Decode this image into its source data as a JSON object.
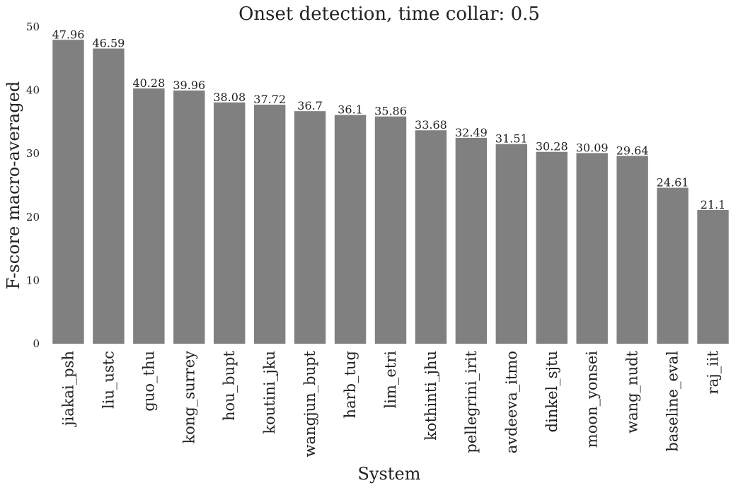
{
  "chart_data": {
    "type": "bar",
    "title": "Onset detection, time collar: 0.5",
    "xlabel": "System",
    "ylabel": "F-score macro-averaged",
    "ylim": [
      0,
      50
    ],
    "yticks": [
      "0",
      "10",
      "20",
      "30",
      "40",
      "50"
    ],
    "grid": false,
    "bar_color": "#808080",
    "categories": [
      "jiakai_psh",
      "liu_ustc",
      "guo_thu",
      "kong_surrey",
      "hou_bupt",
      "koutini_jku",
      "wangjun_bupt",
      "harb_tug",
      "lim_etri",
      "kothinti_jhu",
      "pellegrini_irit",
      "avdeeva_itmo",
      "dinkel_sjtu",
      "moon_yonsei",
      "wang_nudt",
      "baseline_eval",
      "raj_iit"
    ],
    "values": [
      47.96,
      46.59,
      40.28,
      39.96,
      38.08,
      37.72,
      36.7,
      36.1,
      35.86,
      33.68,
      32.49,
      31.51,
      30.28,
      30.09,
      29.64,
      24.61,
      21.1
    ],
    "value_labels": [
      "47.96",
      "46.59",
      "40.28",
      "39.96",
      "38.08",
      "37.72",
      "36.7",
      "36.1",
      "35.86",
      "33.68",
      "32.49",
      "31.51",
      "30.28",
      "30.09",
      "29.64",
      "24.61",
      "21.1"
    ]
  }
}
